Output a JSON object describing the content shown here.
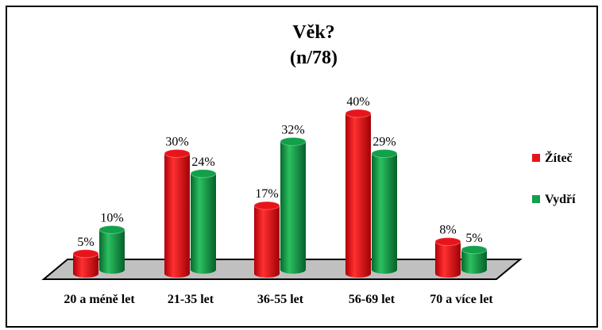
{
  "chart_data": {
    "type": "bar3d",
    "title": "Věk?",
    "subtitle": "(n/78)",
    "categories": [
      "20 a méně let",
      "21-35 let",
      "36-55 let",
      "56-69 let",
      "70 a více let"
    ],
    "series": [
      {
        "name": "Žíteč",
        "color": "#e8141c",
        "values": [
          5,
          30,
          17,
          40,
          8
        ],
        "value_labels": [
          "5%",
          "30%",
          "17%",
          "40%",
          "8%"
        ]
      },
      {
        "name": "Vydří",
        "color": "#12a04a",
        "values": [
          10,
          24,
          32,
          29,
          5
        ],
        "value_labels": [
          "10%",
          "24%",
          "32%",
          "29%",
          "5%"
        ]
      }
    ],
    "legend": "right"
  }
}
